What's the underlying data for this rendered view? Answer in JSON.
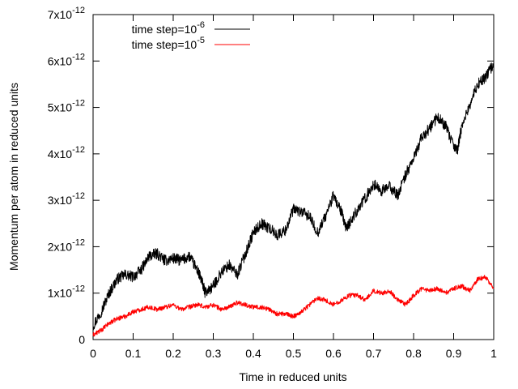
{
  "chart_data": {
    "type": "line",
    "title": "",
    "xlabel": "Time in reduced units",
    "ylabel": "Momentum per atom in reduced units",
    "xlim": [
      0,
      1
    ],
    "ylim": [
      0,
      7e-12
    ],
    "x_ticks": [
      {
        "value": 0,
        "label": "0"
      },
      {
        "value": 0.1,
        "label": "0.1"
      },
      {
        "value": 0.2,
        "label": "0.2"
      },
      {
        "value": 0.3,
        "label": "0.3"
      },
      {
        "value": 0.4,
        "label": "0.4"
      },
      {
        "value": 0.5,
        "label": "0.5"
      },
      {
        "value": 0.6,
        "label": "0.6"
      },
      {
        "value": 0.7,
        "label": "0.7"
      },
      {
        "value": 0.8,
        "label": "0.8"
      },
      {
        "value": 0.9,
        "label": "0.9"
      },
      {
        "value": 1,
        "label": "1"
      }
    ],
    "y_ticks": [
      {
        "value": 0,
        "base": "0",
        "exp": ""
      },
      {
        "value": 1e-12,
        "base": "1x10",
        "exp": "-12"
      },
      {
        "value": 2e-12,
        "base": "2x10",
        "exp": "-12"
      },
      {
        "value": 3e-12,
        "base": "3x10",
        "exp": "-12"
      },
      {
        "value": 4e-12,
        "base": "4x10",
        "exp": "-12"
      },
      {
        "value": 5e-12,
        "base": "5x10",
        "exp": "-12"
      },
      {
        "value": 6e-12,
        "base": "6x10",
        "exp": "-12"
      },
      {
        "value": 7e-12,
        "base": "7x10",
        "exp": "-12"
      }
    ],
    "grid": false,
    "legend_position": "top-left",
    "series": [
      {
        "name_base": "time step=10",
        "name_exp": "-6",
        "color": "#000000",
        "x": [
          0,
          0.02,
          0.04,
          0.06,
          0.08,
          0.1,
          0.12,
          0.14,
          0.16,
          0.18,
          0.2,
          0.22,
          0.24,
          0.26,
          0.27,
          0.28,
          0.3,
          0.32,
          0.34,
          0.36,
          0.38,
          0.4,
          0.42,
          0.44,
          0.46,
          0.48,
          0.5,
          0.52,
          0.54,
          0.56,
          0.58,
          0.6,
          0.62,
          0.63,
          0.64,
          0.66,
          0.68,
          0.7,
          0.72,
          0.74,
          0.76,
          0.78,
          0.8,
          0.82,
          0.84,
          0.86,
          0.88,
          0.9,
          0.91,
          0.92,
          0.94,
          0.96,
          0.98,
          1.0
        ],
        "y": [
          3e-13,
          6e-13,
          1e-12,
          1.3e-12,
          1.4e-12,
          1.35e-12,
          1.5e-12,
          1.8e-12,
          1.85e-12,
          1.7e-12,
          1.75e-12,
          1.7e-12,
          1.8e-12,
          1.5e-12,
          1.3e-12,
          1e-12,
          1.15e-12,
          1.45e-12,
          1.6e-12,
          1.4e-12,
          1.85e-12,
          2.3e-12,
          2.5e-12,
          2.4e-12,
          2.25e-12,
          2.35e-12,
          2.8e-12,
          2.75e-12,
          2.65e-12,
          2.3e-12,
          2.65e-12,
          3.1e-12,
          2.75e-12,
          2.4e-12,
          2.5e-12,
          2.8e-12,
          3.05e-12,
          3.35e-12,
          3.2e-12,
          3.3e-12,
          3.1e-12,
          3.55e-12,
          3.9e-12,
          4.35e-12,
          4.55e-12,
          4.8e-12,
          4.6e-12,
          4.15e-12,
          4.1e-12,
          4.6e-12,
          5.05e-12,
          5.5e-12,
          5.65e-12,
          5.95e-12
        ]
      },
      {
        "name_base": "time step=10",
        "name_exp": "-5",
        "color": "#ff0000",
        "x": [
          0,
          0.02,
          0.04,
          0.06,
          0.08,
          0.1,
          0.12,
          0.14,
          0.16,
          0.18,
          0.2,
          0.22,
          0.24,
          0.26,
          0.28,
          0.3,
          0.32,
          0.34,
          0.36,
          0.38,
          0.4,
          0.42,
          0.44,
          0.46,
          0.48,
          0.5,
          0.52,
          0.54,
          0.56,
          0.58,
          0.6,
          0.62,
          0.64,
          0.66,
          0.68,
          0.7,
          0.72,
          0.74,
          0.76,
          0.78,
          0.8,
          0.82,
          0.84,
          0.86,
          0.88,
          0.9,
          0.92,
          0.94,
          0.96,
          0.98,
          1.0
        ],
        "y": [
          1e-13,
          2e-13,
          3.5e-13,
          4.5e-13,
          5e-13,
          6e-13,
          6.5e-13,
          7e-13,
          6.5e-13,
          7e-13,
          7.5e-13,
          6.5e-13,
          7e-13,
          7.5e-13,
          7e-13,
          7.5e-13,
          6.5e-13,
          7e-13,
          8e-13,
          7.5e-13,
          7e-13,
          7e-13,
          6.5e-13,
          5.5e-13,
          5.5e-13,
          5e-13,
          6e-13,
          7.5e-13,
          9e-13,
          8.5e-13,
          7.5e-13,
          8.5e-13,
          9.5e-13,
          9.5e-13,
          8.5e-13,
          1.05e-12,
          1e-12,
          1.05e-12,
          8.5e-13,
          7.5e-13,
          9.5e-13,
          1.1e-12,
          1.05e-12,
          1.1e-12,
          1e-12,
          1.1e-12,
          1.15e-12,
          1.05e-12,
          1.3e-12,
          1.35e-12,
          1.1e-12
        ]
      }
    ]
  }
}
